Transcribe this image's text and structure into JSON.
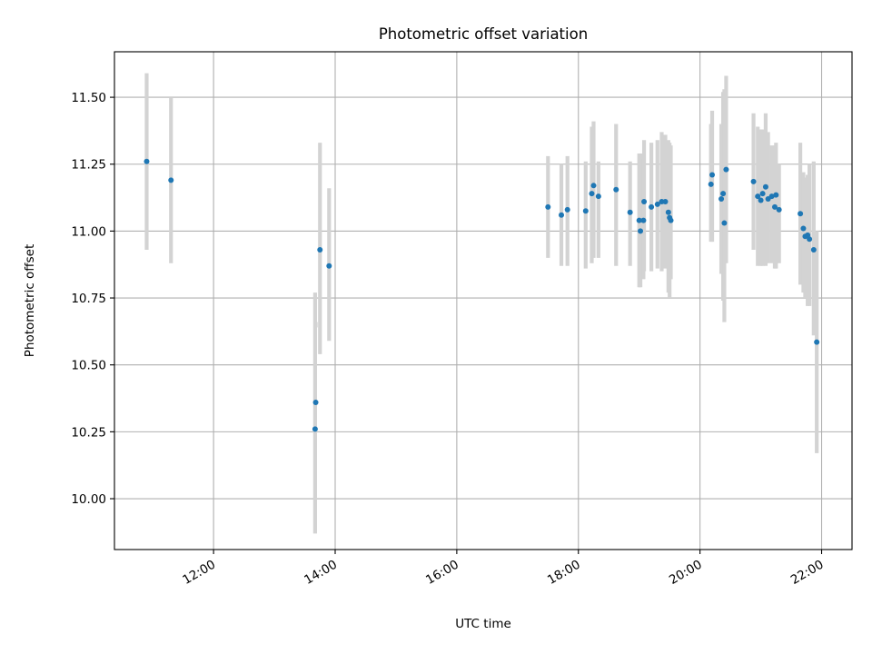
{
  "chart_data": {
    "type": "scatter",
    "title": "Photometric offset variation",
    "xlabel": "UTC time",
    "ylabel": "Photometric offset",
    "x_tick_labels": [
      "12:00",
      "14:00",
      "16:00",
      "18:00",
      "20:00",
      "22:00"
    ],
    "x_ticks_hours": [
      12,
      14,
      16,
      18,
      20,
      22
    ],
    "y_tick_labels": [
      "10.00",
      "10.25",
      "10.50",
      "10.75",
      "11.00",
      "11.25",
      "11.50"
    ],
    "y_ticks": [
      10.0,
      10.25,
      10.5,
      10.75,
      11.0,
      11.25,
      11.5
    ],
    "xlim_hours": [
      10.37,
      22.5
    ],
    "ylim": [
      9.81,
      11.67
    ],
    "grid": true,
    "colors": {
      "points": "#1f77b4",
      "error_bars": "#d3d3d3"
    },
    "series": [
      {
        "x_hours": [
          10.9,
          11.3,
          13.67,
          13.68,
          13.75,
          13.9,
          17.5,
          17.72,
          17.82,
          18.12,
          18.22,
          18.25,
          18.33,
          18.62,
          18.85,
          19.0,
          19.02,
          19.07,
          19.08,
          19.2,
          19.3,
          19.37,
          19.43,
          19.48,
          19.5,
          19.52,
          20.18,
          20.2,
          20.35,
          20.38,
          20.4,
          20.43,
          20.88,
          20.95,
          21.0,
          21.03,
          21.08,
          21.12,
          21.18,
          21.23,
          21.25,
          21.3,
          21.65,
          21.7,
          21.73,
          21.77,
          21.8,
          21.87,
          21.92
        ],
        "y": [
          11.26,
          11.19,
          10.26,
          10.36,
          10.93,
          10.87,
          11.09,
          11.06,
          11.08,
          11.075,
          11.14,
          11.17,
          11.13,
          11.155,
          11.07,
          11.04,
          11.0,
          11.04,
          11.11,
          11.09,
          11.1,
          11.11,
          11.11,
          11.07,
          11.05,
          11.04,
          11.175,
          11.21,
          11.12,
          11.14,
          11.03,
          11.23,
          11.185,
          11.13,
          11.115,
          11.14,
          11.165,
          11.12,
          11.13,
          11.09,
          11.135,
          11.08,
          11.065,
          11.01,
          10.98,
          10.985,
          10.97,
          10.93,
          10.585
        ],
        "err_low": [
          10.93,
          10.88,
          9.87,
          10.66,
          10.54,
          10.59,
          10.9,
          10.87,
          10.87,
          10.86,
          10.88,
          10.9,
          10.9,
          10.87,
          10.87,
          10.79,
          10.79,
          10.82,
          10.85,
          10.85,
          10.86,
          10.85,
          10.86,
          10.77,
          10.75,
          10.82,
          10.96,
          10.96,
          10.84,
          10.74,
          10.66,
          10.88,
          10.93,
          10.87,
          10.87,
          10.87,
          10.87,
          10.88,
          10.88,
          10.86,
          10.86,
          10.88,
          10.8,
          10.77,
          10.75,
          10.72,
          10.72,
          10.61,
          10.17
        ],
        "err_high": [
          11.59,
          11.5,
          10.77,
          10.64,
          11.33,
          11.16,
          11.28,
          11.25,
          11.28,
          11.26,
          11.39,
          11.41,
          11.26,
          11.4,
          11.26,
          11.29,
          11.29,
          11.27,
          11.34,
          11.33,
          11.34,
          11.37,
          11.36,
          11.34,
          11.33,
          11.32,
          11.4,
          11.45,
          11.4,
          11.52,
          11.53,
          11.58,
          11.44,
          11.39,
          11.38,
          11.38,
          11.44,
          11.37,
          11.32,
          11.32,
          11.33,
          11.25,
          11.33,
          11.22,
          11.2,
          11.21,
          11.25,
          11.26,
          11.0
        ]
      }
    ]
  }
}
